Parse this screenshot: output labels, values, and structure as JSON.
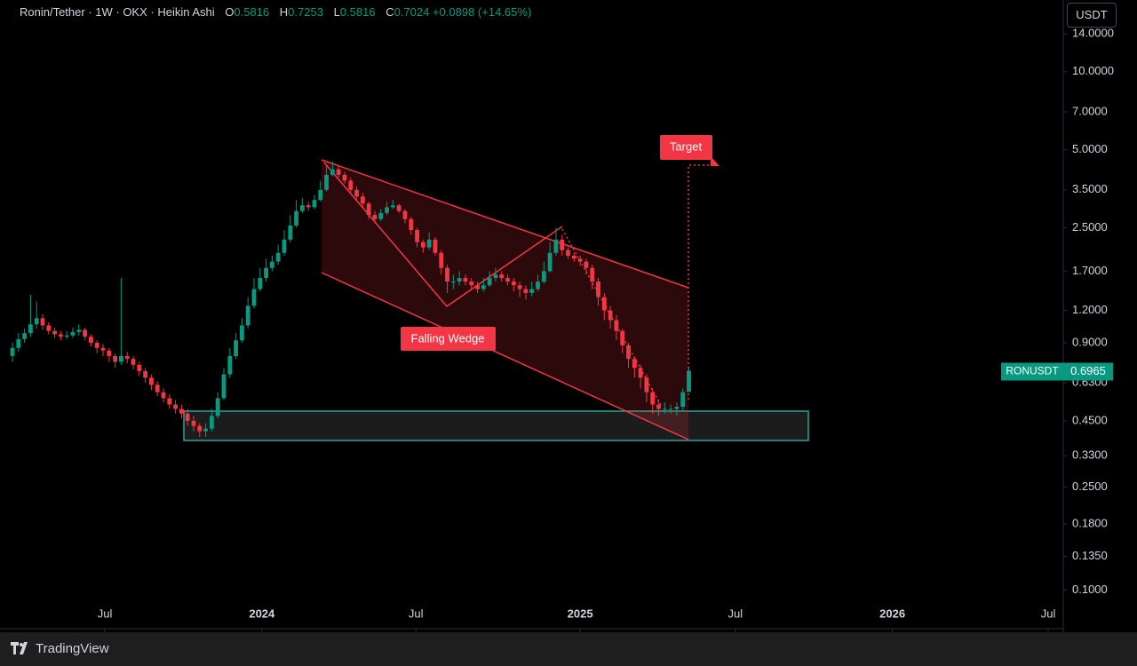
{
  "chart_data": {
    "type": "candlestick",
    "title": "Ronin/Tether · 1W · OKX · Heikin Ashi",
    "ohlc_letters": [
      "O",
      "H",
      "L",
      "C"
    ],
    "change_label": "+0.0898 (+14.65%)",
    "currency": "USDT",
    "log_scale": true,
    "up_color": "#089981",
    "down_color": "#f23645",
    "open": [
      0.8,
      0.86,
      0.93,
      0.98,
      1.06,
      1.12,
      1.05,
      1.0,
      0.97,
      0.95,
      0.96,
      0.99,
      1.01,
      0.95,
      0.9,
      0.86,
      0.84,
      0.8,
      0.76,
      0.8,
      0.78,
      0.74,
      0.7,
      0.66,
      0.62,
      0.58,
      0.55,
      0.52,
      0.5,
      0.48,
      0.45,
      0.43,
      0.41,
      0.42,
      0.47,
      0.55,
      0.68,
      0.8,
      0.92,
      1.05,
      1.25,
      1.45,
      1.6,
      1.75,
      1.85,
      2.0,
      2.25,
      2.55,
      2.9,
      3.05,
      3.0,
      3.2,
      3.5,
      4.0,
      4.2,
      4.0,
      3.8,
      3.5,
      3.3,
      3.1,
      2.8,
      2.7,
      2.85,
      3.0,
      3.05,
      2.9,
      2.7,
      2.45,
      2.2,
      2.1,
      2.25,
      2.0,
      1.75,
      1.55,
      1.55,
      1.6,
      1.55,
      1.5,
      1.45,
      1.5,
      1.6,
      1.65,
      1.6,
      1.55,
      1.5,
      1.45,
      1.4,
      1.45,
      1.55,
      1.7,
      2.0,
      2.25,
      2.05,
      1.95,
      1.9,
      1.85,
      1.75,
      1.55,
      1.35,
      1.2,
      1.1,
      1.0,
      0.88,
      0.78,
      0.72,
      0.66,
      0.58,
      0.52,
      0.5,
      0.5,
      0.5,
      0.51,
      0.5816
    ],
    "high": [
      0.9,
      0.98,
      1.02,
      1.38,
      1.3,
      1.16,
      1.08,
      1.03,
      1.0,
      1.0,
      1.03,
      1.06,
      1.03,
      0.97,
      0.92,
      0.89,
      0.86,
      0.82,
      1.6,
      0.83,
      0.8,
      0.76,
      0.72,
      0.68,
      0.64,
      0.6,
      0.57,
      0.54,
      0.52,
      0.5,
      0.47,
      0.44,
      0.44,
      0.5,
      0.58,
      0.72,
      0.86,
      0.98,
      1.12,
      1.35,
      1.6,
      1.75,
      1.9,
      1.95,
      2.15,
      2.45,
      2.8,
      3.2,
      3.25,
      3.15,
      3.35,
      3.8,
      4.4,
      4.5,
      4.35,
      4.1,
      3.9,
      3.6,
      3.4,
      3.15,
      2.9,
      2.95,
      3.15,
      3.2,
      3.1,
      2.95,
      2.75,
      2.5,
      2.25,
      2.4,
      2.3,
      2.05,
      1.8,
      1.65,
      1.7,
      1.65,
      1.6,
      1.55,
      1.6,
      1.7,
      1.75,
      1.7,
      1.65,
      1.6,
      1.55,
      1.5,
      1.55,
      1.65,
      1.85,
      2.2,
      2.5,
      2.35,
      2.1,
      2.0,
      1.95,
      1.9,
      1.8,
      1.6,
      1.4,
      1.25,
      1.15,
      1.02,
      0.9,
      0.8,
      0.74,
      0.68,
      0.6,
      0.54,
      0.53,
      0.52,
      0.53,
      0.6,
      0.7253
    ],
    "low": [
      0.76,
      0.83,
      0.9,
      0.95,
      1.02,
      1.01,
      0.97,
      0.94,
      0.92,
      0.93,
      0.94,
      0.96,
      0.92,
      0.87,
      0.82,
      0.8,
      0.76,
      0.72,
      0.74,
      0.75,
      0.71,
      0.67,
      0.63,
      0.59,
      0.56,
      0.53,
      0.5,
      0.48,
      0.46,
      0.43,
      0.41,
      0.39,
      0.39,
      0.41,
      0.46,
      0.54,
      0.66,
      0.78,
      0.9,
      1.02,
      1.22,
      1.42,
      1.55,
      1.7,
      1.8,
      1.95,
      2.2,
      2.5,
      2.85,
      2.9,
      2.95,
      3.15,
      3.45,
      3.95,
      3.9,
      3.7,
      3.4,
      3.2,
      3.0,
      2.7,
      2.6,
      2.65,
      2.8,
      2.95,
      2.85,
      2.6,
      2.35,
      2.1,
      2.0,
      2.05,
      1.95,
      1.65,
      1.4,
      1.45,
      1.5,
      1.5,
      1.45,
      1.4,
      1.42,
      1.48,
      1.55,
      1.55,
      1.5,
      1.42,
      1.35,
      1.32,
      1.36,
      1.42,
      1.52,
      1.68,
      1.95,
      1.95,
      1.9,
      1.85,
      1.78,
      1.65,
      1.45,
      1.25,
      1.1,
      1.02,
      0.92,
      0.82,
      0.72,
      0.66,
      0.6,
      0.53,
      0.48,
      0.47,
      0.48,
      0.48,
      0.47,
      0.49,
      0.5816
    ],
    "close": [
      0.86,
      0.93,
      0.98,
      1.06,
      1.12,
      1.05,
      1.0,
      0.97,
      0.95,
      0.96,
      0.99,
      1.01,
      0.95,
      0.9,
      0.86,
      0.84,
      0.8,
      0.76,
      0.8,
      0.78,
      0.74,
      0.7,
      0.66,
      0.62,
      0.58,
      0.55,
      0.52,
      0.5,
      0.48,
      0.45,
      0.43,
      0.41,
      0.42,
      0.47,
      0.55,
      0.68,
      0.8,
      0.92,
      1.05,
      1.25,
      1.45,
      1.6,
      1.75,
      1.85,
      2.0,
      2.25,
      2.55,
      2.9,
      3.05,
      3.0,
      3.2,
      3.5,
      4.0,
      4.2,
      4.0,
      3.8,
      3.5,
      3.3,
      3.1,
      2.8,
      2.7,
      2.85,
      3.0,
      3.05,
      2.9,
      2.7,
      2.45,
      2.2,
      2.1,
      2.25,
      2.0,
      1.75,
      1.55,
      1.55,
      1.6,
      1.55,
      1.5,
      1.45,
      1.5,
      1.6,
      1.65,
      1.6,
      1.55,
      1.5,
      1.45,
      1.4,
      1.45,
      1.55,
      1.7,
      2.0,
      2.25,
      2.05,
      1.95,
      1.9,
      1.85,
      1.75,
      1.55,
      1.35,
      1.2,
      1.1,
      1.0,
      0.88,
      0.78,
      0.72,
      0.66,
      0.58,
      0.52,
      0.5,
      0.5,
      0.5,
      0.51,
      0.58,
      0.7024
    ],
    "xlim": [
      -2.06,
      173.7
    ],
    "xticks": [
      {
        "value": 15.3,
        "label": "Jul"
      },
      {
        "value": 41.3,
        "label": "2024"
      },
      {
        "value": 66.8,
        "label": "Jul"
      },
      {
        "value": 94.0,
        "label": "2025"
      },
      {
        "value": 119.7,
        "label": "Jul"
      },
      {
        "value": 145.7,
        "label": "2026"
      },
      {
        "value": 171.5,
        "label": "Jul"
      }
    ],
    "ylim": [
      0.071,
      18.9
    ],
    "yticks": [
      {
        "value": 14,
        "label": "14.0000"
      },
      {
        "value": 10,
        "label": "10.0000"
      },
      {
        "value": 7,
        "label": "7.0000"
      },
      {
        "value": 5,
        "label": "5.0000"
      },
      {
        "value": 3.5,
        "label": "3.5000"
      },
      {
        "value": 2.5,
        "label": "2.5000"
      },
      {
        "value": 1.7,
        "label": "1.7000"
      },
      {
        "value": 1.2,
        "label": "1.2000"
      },
      {
        "value": 0.9,
        "label": "0.9000"
      },
      {
        "value": 0.63,
        "label": "0.6300"
      },
      {
        "value": 0.45,
        "label": "0.4500"
      },
      {
        "value": 0.33,
        "label": "0.3300"
      },
      {
        "value": 0.25,
        "label": "0.2500"
      },
      {
        "value": 0.18,
        "label": "0.1800"
      },
      {
        "value": 0.135,
        "label": "0.1350"
      },
      {
        "value": 0.1,
        "label": "0.1000"
      }
    ],
    "last_price": {
      "symbol": "RONUSDT",
      "value": 0.6965
    },
    "annotations": [
      "Falling Wedge",
      "Target"
    ]
  },
  "footer": {
    "brand": "TradingView"
  }
}
